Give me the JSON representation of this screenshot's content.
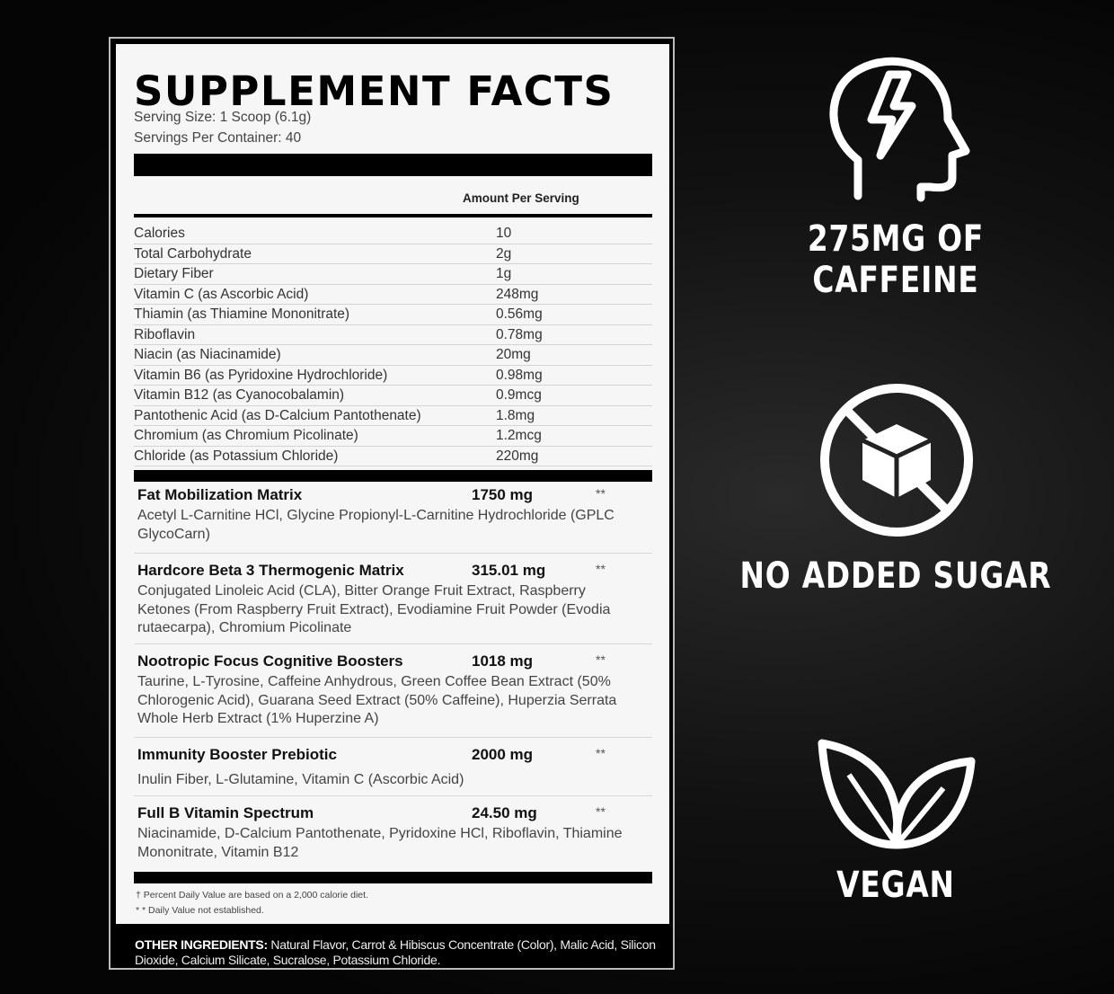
{
  "facts": {
    "title": "SUPPLEMENT FACTS",
    "serving_size": "Serving Size: 1 Scoop (6.1g)",
    "servings_per_container": "Servings Per Container: 40",
    "amount_per_serving": "Amount Per Serving",
    "nutrients": [
      {
        "name": "Calories",
        "amount": "10"
      },
      {
        "name": "Total Carbohydrate",
        "amount": "2g"
      },
      {
        "name": "Dietary Fiber",
        "amount": "1g"
      },
      {
        "name": "Vitamin C (as Ascorbic Acid)",
        "amount": "248mg"
      },
      {
        "name": "Thiamin (as Thiamine Mononitrate)",
        "amount": "0.56mg"
      },
      {
        "name": "Riboflavin",
        "amount": "0.78mg"
      },
      {
        "name": "Niacin (as Niacinamide)",
        "amount": "20mg"
      },
      {
        "name": "Vitamin B6 (as Pyridoxine Hydrochloride)",
        "amount": "0.98mg"
      },
      {
        "name": "Vitamin B12 (as Cyanocobalamin)",
        "amount": "0.9mcg"
      },
      {
        "name": "Pantothenic Acid (as D-Calcium Pantothenate)",
        "amount": "1.8mg"
      },
      {
        "name": "Chromium (as Chromium Picolinate)",
        "amount": "1.2mcg"
      },
      {
        "name": "Chloride (as Potassium Chloride)",
        "amount": "220mg"
      }
    ],
    "blends": [
      {
        "name": "Fat Mobilization Matrix",
        "amount": "1750 mg",
        "dv": "**",
        "ingredients": "Acetyl L-Carnitine HCl, Glycine Propionyl-L-Carnitine Hydrochloride (GPLC GlycoCarn)"
      },
      {
        "name": "Hardcore Beta 3 Thermogenic Matrix",
        "amount": "315.01 mg",
        "dv": "**",
        "ingredients": "Conjugated Linoleic Acid (CLA), Bitter Orange Fruit Extract, Raspberry Ketones (From Raspberry Fruit Extract), Evodiamine Fruit Powder (Evodia rutaecarpa), Chromium Picolinate"
      },
      {
        "name": "Nootropic Focus Cognitive Boosters",
        "amount": "1018 mg",
        "dv": "**",
        "ingredients": "Taurine, L-Tyrosine, Caffeine Anhydrous, Green Coffee Bean Extract (50% Chlorogenic Acid), Guarana Seed Extract (50% Caffeine), Huperzia Serrata Whole Herb Extract (1% Huperzine A)"
      },
      {
        "name": "Immunity Booster Prebiotic",
        "amount": "2000 mg",
        "dv": "**",
        "ingredients": "Inulin Fiber, L-Glutamine, Vitamin C (Ascorbic Acid)"
      },
      {
        "name": "Full B Vitamin Spectrum",
        "amount": "24.50 mg",
        "dv": "**",
        "ingredients": "Niacinamide, D-Calcium Pantothenate, Pyridoxine HCl, Riboflavin, Thiamine Mononitrate, Vitamin B12"
      }
    ],
    "footnote_1": "† Percent Daily Value are based on a 2,000 calorie diet.",
    "footnote_2": "* * Daily Value not established.",
    "other_label": "OTHER INGREDIENTS:",
    "other_text": " Natural Flavor, Carrot & Hibiscus Concentrate (Color), Malic Acid, Silicon Dioxide, Calcium Silicate, Sucralose, Potassium Chloride."
  },
  "features": [
    {
      "icon": "head-lightning-icon",
      "label": "275MG OF CAFFEINE"
    },
    {
      "icon": "no-sugar-cube-icon",
      "label": "NO ADDED SUGAR"
    },
    {
      "icon": "leaves-icon",
      "label": "VEGAN"
    }
  ]
}
